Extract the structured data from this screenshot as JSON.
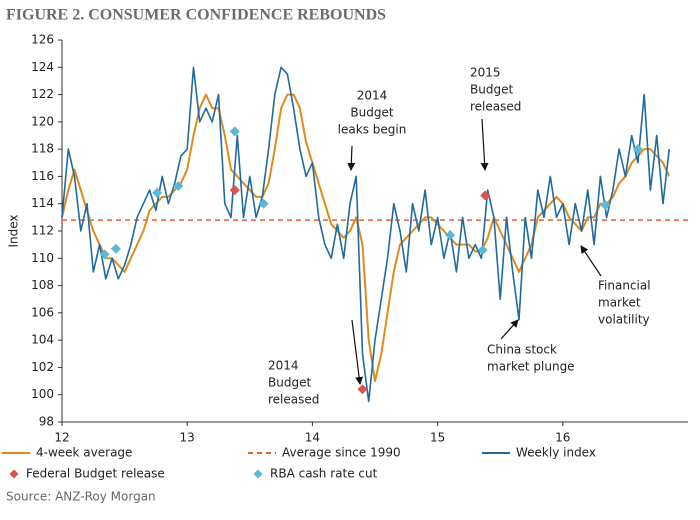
{
  "chart_data": {
    "type": "line",
    "title": "FIGURE 2. CONSUMER CONFIDENCE REBOUNDS",
    "y_label": "Index",
    "source": "Source: ANZ-Roy Morgan",
    "xlim": [
      12,
      17
    ],
    "xticks": [
      12,
      13,
      14,
      15,
      16
    ],
    "ylim": [
      98,
      126
    ],
    "yticks": [
      98,
      100,
      102,
      104,
      106,
      108,
      110,
      112,
      114,
      116,
      118,
      120,
      122,
      124,
      126
    ],
    "x": [
      12.0,
      12.05,
      12.1,
      12.15,
      12.2,
      12.25,
      12.3,
      12.35,
      12.4,
      12.45,
      12.5,
      12.55,
      12.6,
      12.65,
      12.7,
      12.75,
      12.8,
      12.85,
      12.9,
      12.95,
      13.0,
      13.05,
      13.1,
      13.15,
      13.2,
      13.25,
      13.3,
      13.35,
      13.4,
      13.45,
      13.5,
      13.55,
      13.6,
      13.65,
      13.7,
      13.75,
      13.8,
      13.85,
      13.9,
      13.95,
      14.0,
      14.05,
      14.1,
      14.15,
      14.2,
      14.25,
      14.3,
      14.35,
      14.4,
      14.45,
      14.5,
      14.55,
      14.6,
      14.65,
      14.7,
      14.75,
      14.8,
      14.85,
      14.9,
      14.95,
      15.0,
      15.05,
      15.1,
      15.15,
      15.2,
      15.25,
      15.3,
      15.35,
      15.4,
      15.45,
      15.5,
      15.55,
      15.6,
      15.65,
      15.7,
      15.75,
      15.8,
      15.85,
      15.9,
      15.95,
      16.0,
      16.05,
      16.1,
      16.15,
      16.2,
      16.25,
      16.3,
      16.35,
      16.4,
      16.45,
      16.5,
      16.55,
      16.6,
      16.65,
      16.7,
      16.75,
      16.8,
      16.85
    ],
    "series": [
      {
        "name": "4-week average",
        "color": "#e08a1e",
        "values": [
          113,
          115,
          116.5,
          115,
          113.5,
          112,
          111,
          110,
          110,
          109.5,
          109,
          110,
          111,
          112,
          113.5,
          114,
          114.5,
          114.5,
          115,
          115.5,
          116.5,
          119,
          121,
          122,
          121,
          121,
          119,
          116.5,
          116,
          115.5,
          115,
          114.5,
          114.5,
          115.5,
          118,
          121,
          122,
          122,
          121,
          118.5,
          117,
          115.5,
          114,
          112.5,
          112,
          111.5,
          112,
          113,
          111,
          104,
          101,
          103,
          106,
          109,
          111,
          111.5,
          112,
          112.5,
          113,
          113,
          112.5,
          112,
          111.5,
          111,
          111,
          111,
          110.5,
          110.5,
          111.5,
          113,
          112,
          111,
          110,
          109,
          110,
          111,
          113,
          113.5,
          114,
          114.5,
          114,
          113,
          112.5,
          112,
          113,
          113,
          114,
          114,
          114.5,
          115.5,
          116,
          117,
          117.5,
          118,
          118,
          117.5,
          117,
          116
        ]
      },
      {
        "name": "Weekly index",
        "color": "#1f6a9e",
        "values": [
          113,
          118,
          116,
          112,
          114,
          109,
          111,
          108.5,
          110,
          108.5,
          109.5,
          111,
          113,
          114,
          115,
          113.5,
          116,
          114,
          115.5,
          117.5,
          118,
          124,
          120,
          121,
          120,
          122,
          114,
          113,
          119,
          113,
          116,
          113,
          114.5,
          118,
          122,
          124,
          123.5,
          121,
          118,
          116,
          117,
          113,
          111,
          110,
          112.5,
          110,
          114,
          116,
          103,
          99.5,
          104,
          107,
          110,
          114,
          112,
          109,
          114,
          112,
          115,
          111,
          113,
          110,
          112,
          109,
          113,
          110,
          111,
          110,
          115,
          113,
          107,
          113,
          109,
          105.5,
          113,
          110,
          115,
          113,
          116,
          113,
          114,
          111,
          114,
          112,
          115,
          111,
          116,
          113,
          115,
          118,
          116,
          119,
          117,
          122,
          115,
          119,
          114,
          118
        ]
      }
    ],
    "reference_line": {
      "name": "Average since 1990",
      "value": 112.8,
      "color": "#e0603a"
    },
    "markers": [
      {
        "name": "Federal Budget release",
        "color": "#d9534f",
        "x": [
          13.38,
          14.4,
          15.38
        ],
        "values": [
          115,
          100.4,
          114.6
        ]
      },
      {
        "name": "RBA cash rate cut",
        "color": "#5bb8d6",
        "x": [
          12.34,
          12.43,
          12.76,
          12.93,
          13.38,
          13.61,
          15.1,
          15.36,
          16.34,
          16.6
        ],
        "values": [
          110.3,
          110.7,
          114.8,
          115.3,
          119.3,
          114,
          111.7,
          110.6,
          113.9,
          118
        ]
      }
    ],
    "annotations": [
      {
        "lines": [
          "2014",
          "Budget",
          "leaks begin"
        ]
      },
      {
        "lines": [
          "2015",
          "Budget",
          "released"
        ]
      },
      {
        "lines": [
          "2014",
          "Budget",
          "released"
        ]
      },
      {
        "lines": [
          "China stock",
          "market plunge"
        ]
      },
      {
        "lines": [
          "Financial",
          "market",
          "volatility"
        ]
      }
    ]
  }
}
